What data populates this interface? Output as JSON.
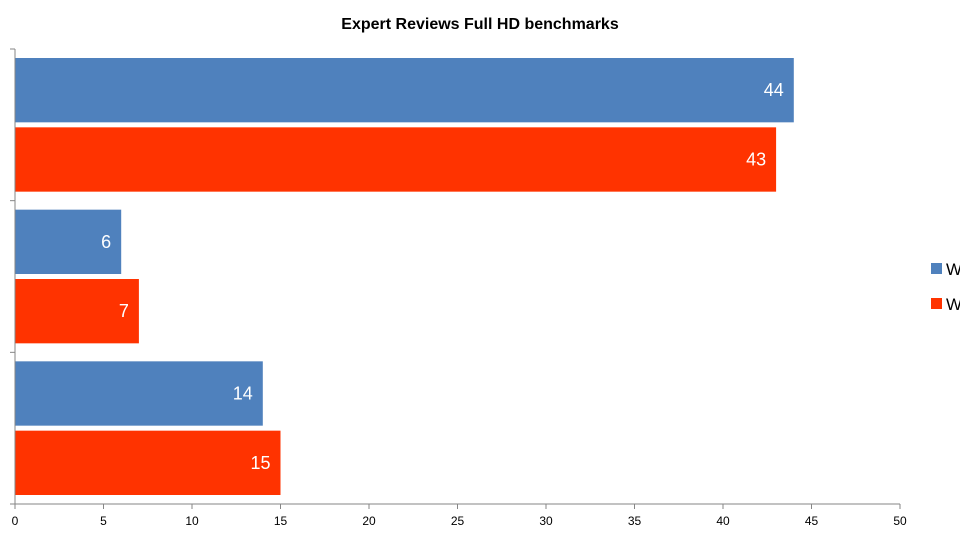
{
  "chart_data": {
    "type": "bar",
    "orientation": "horizontal",
    "title": "Expert Reviews Full HD benchmarks",
    "xlabel": "",
    "ylabel": "",
    "xlim": [
      0,
      50
    ],
    "x_ticks": [
      0,
      5,
      10,
      15,
      20,
      25,
      30,
      35,
      40,
      45,
      50
    ],
    "categories": [
      "",
      "",
      ""
    ],
    "series": [
      {
        "name": "W",
        "color": "#4f81bd",
        "values": [
          44,
          6,
          14
        ]
      },
      {
        "name": "W",
        "color": "#ff3300",
        "values": [
          43,
          7,
          15
        ]
      }
    ],
    "data_labels": true,
    "grid": false,
    "legend_position": "right"
  }
}
